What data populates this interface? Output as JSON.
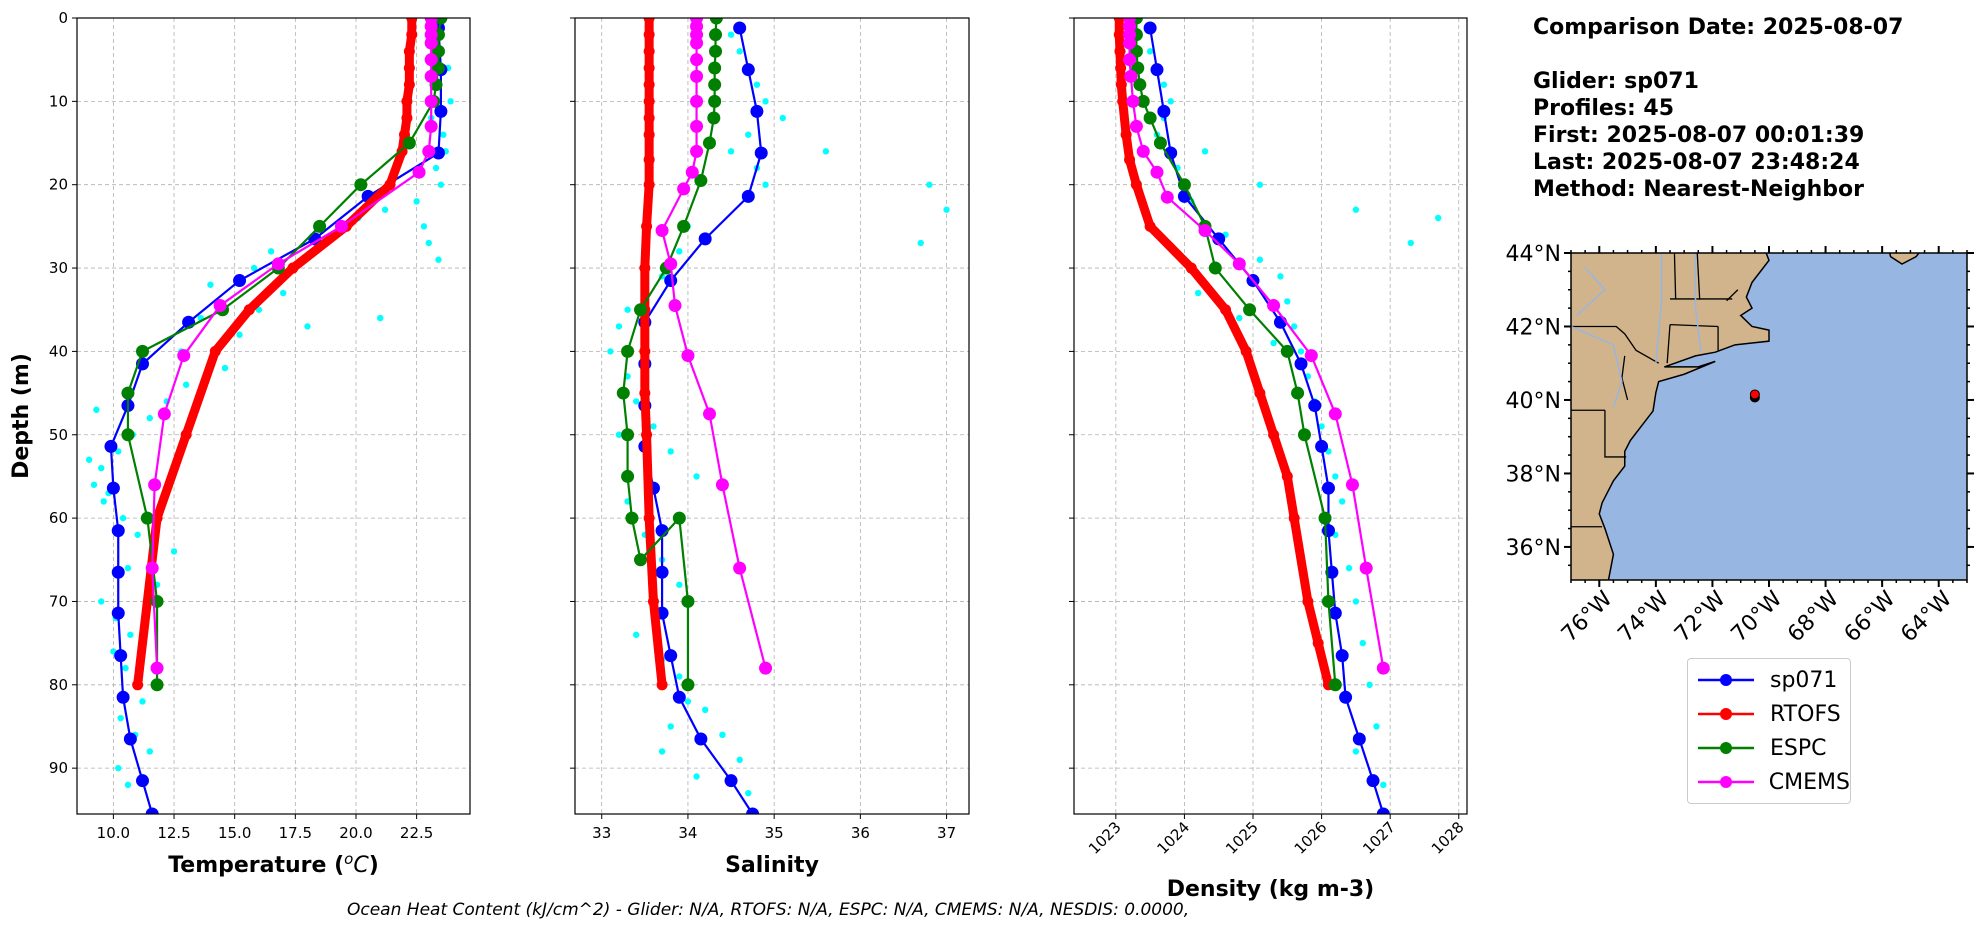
{
  "info": {
    "comparison_date": "Comparison Date: 2025-08-07",
    "glider": "Glider: sp071",
    "profiles": "Profiles: 45",
    "first": "First: 2025-08-07 00:01:39",
    "last": "Last: 2025-08-07 23:48:24",
    "method": "Method: Nearest-Neighbor"
  },
  "footer": "Ocean Heat Content (kJ/cm^2) - Glider: N/A,  RTOFS: N/A,  ESPC: N/A,  CMEMS: N/A,  NESDIS: 0.0000,",
  "legend": [
    {
      "label": "sp071",
      "color": "#0000ff"
    },
    {
      "label": "RTOFS",
      "color": "#ff0000"
    },
    {
      "label": "ESPC",
      "color": "#008000"
    },
    {
      "label": "CMEMS",
      "color": "#ff00ff"
    }
  ],
  "colors": {
    "glider_obs": "#00ffff",
    "land": "#d2b48c",
    "ocean": "#97b6e1"
  },
  "chart_data": [
    {
      "type": "line",
      "panel": "temperature",
      "xlabel": "Temperature (oC)",
      "ylabel": "Depth (m)",
      "xlim": [
        8.5,
        24.7
      ],
      "ylim": [
        95.5,
        0
      ],
      "xticks": [
        10.0,
        12.5,
        15.0,
        17.5,
        20.0,
        22.5
      ],
      "xtick_labels": [
        "10.0",
        "12.5",
        "15.0",
        "17.5",
        "20.0",
        "22.5"
      ],
      "yticks": [
        0,
        10,
        20,
        30,
        40,
        50,
        60,
        70,
        80,
        90
      ],
      "ytick_labels": [
        "0",
        "10",
        "20",
        "30",
        "40",
        "50",
        "60",
        "70",
        "80",
        "90"
      ],
      "grid": true,
      "scatter_glider": {
        "x": [
          23.2,
          23.5,
          23.8,
          23.4,
          23.9,
          23.1,
          23.6,
          23.7,
          23.3,
          23.5,
          22.5,
          21.2,
          22.8,
          23.0,
          23.4,
          20.1,
          19.2,
          16.5,
          15.8,
          17.0,
          14.0,
          13.6,
          15.2,
          12.8,
          14.6,
          16.0,
          18.0,
          21.0,
          13.0,
          12.2,
          11.5,
          10.8,
          10.2,
          9.5,
          9.2,
          9.6,
          10.4,
          11.0,
          12.5,
          9.3,
          9.0,
          9.8,
          10.6,
          11.8,
          9.5,
          10.1,
          10.7,
          10.0,
          10.5,
          11.2,
          10.3,
          10.9,
          11.5,
          10.2,
          10.6
        ],
        "y": [
          2,
          4,
          6,
          8,
          10,
          12,
          14,
          16,
          18,
          20,
          22,
          23,
          25,
          27,
          29,
          24,
          26,
          28,
          30,
          33,
          32,
          36,
          38,
          40,
          42,
          35,
          37,
          36,
          44,
          46,
          48,
          50,
          52,
          54,
          56,
          58,
          60,
          62,
          64,
          47,
          53,
          57,
          66,
          68,
          70,
          72,
          74,
          76,
          78,
          82,
          84,
          86,
          88,
          90,
          92
        ]
      },
      "series": [
        {
          "name": "sp071",
          "x": [
            23.4,
            23.5,
            23.5,
            23.4,
            20.5,
            18.3,
            15.2,
            13.1,
            11.2,
            10.6,
            9.9,
            10.0,
            10.2,
            10.2,
            10.2,
            10.3,
            10.4,
            10.7,
            11.2,
            11.6
          ],
          "y": [
            1.2,
            6.2,
            11.2,
            16.2,
            21.4,
            26.5,
            31.5,
            36.5,
            41.5,
            46.5,
            51.4,
            56.4,
            61.5,
            66.5,
            71.4,
            76.5,
            81.5,
            86.5,
            91.5,
            95.5
          ]
        },
        {
          "name": "RTOFS",
          "x": [
            22.3,
            22.3,
            22.2,
            22.2,
            22.2,
            22.1,
            22.1,
            22.0,
            21.9,
            21.4,
            19.6,
            17.4,
            15.6,
            14.2,
            13.0,
            11.8,
            11.0
          ],
          "y": [
            0,
            2,
            4,
            6,
            8,
            10,
            12,
            14,
            16,
            20,
            25,
            30,
            35,
            40,
            50,
            60,
            80
          ]
        },
        {
          "name": "ESPC",
          "x": [
            23.5,
            23.4,
            23.4,
            23.4,
            23.3,
            23.2,
            22.2,
            20.2,
            18.5,
            16.8,
            14.5,
            11.2,
            10.6,
            10.6,
            11.4,
            11.8,
            11.8
          ],
          "y": [
            0,
            2,
            4,
            6,
            8,
            10,
            15,
            20,
            25,
            30,
            35,
            40,
            45,
            50,
            60,
            70,
            80
          ]
        },
        {
          "name": "CMEMS",
          "x": [
            23.1,
            23.1,
            23.1,
            23.1,
            23.1,
            23.1,
            23.1,
            23.1,
            23.0,
            22.6,
            19.4,
            16.8,
            14.4,
            12.9,
            12.1,
            11.7,
            11.6,
            11.8
          ],
          "y": [
            0,
            1,
            2,
            3,
            5,
            7,
            10,
            13,
            16,
            18.5,
            25,
            29.5,
            34.5,
            40.5,
            47.5,
            56,
            66,
            78
          ]
        }
      ]
    },
    {
      "type": "line",
      "panel": "salinity",
      "xlabel": "Salinity",
      "ylabel": "",
      "xlim": [
        32.69,
        37.26
      ],
      "ylim": [
        95.5,
        0
      ],
      "xticks": [
        33,
        34,
        35,
        36,
        37
      ],
      "xtick_labels": [
        "33",
        "34",
        "35",
        "36",
        "37"
      ],
      "yticks": [
        0,
        10,
        20,
        30,
        40,
        50,
        60,
        70,
        80,
        90
      ],
      "grid": true,
      "scatter_glider": {
        "x": [
          34.5,
          34.6,
          34.7,
          34.8,
          34.9,
          35.1,
          34.7,
          34.5,
          34.8,
          34.9,
          35.6,
          36.8,
          37.0,
          36.7,
          34.0,
          33.9,
          33.7,
          33.5,
          33.3,
          33.2,
          33.1,
          33.3,
          33.4,
          33.6,
          33.8,
          34.1,
          33.3,
          33.5,
          33.7,
          33.9,
          33.6,
          33.4,
          33.7,
          33.9,
          34.0,
          33.8,
          33.7,
          34.2,
          34.4,
          34.6,
          34.1,
          34.7,
          33.5,
          33.2
        ],
        "y": [
          2,
          4,
          6,
          8,
          10,
          12,
          14,
          16,
          18,
          20,
          16,
          20,
          23,
          27,
          25,
          28,
          31,
          33,
          35,
          37,
          40,
          43,
          46,
          49,
          52,
          55,
          58,
          62,
          65,
          68,
          71,
          74,
          77,
          79,
          82,
          85,
          88,
          83,
          86,
          89,
          91,
          93,
          45,
          50
        ]
      },
      "series": [
        {
          "name": "sp071",
          "x": [
            34.6,
            34.7,
            34.8,
            34.85,
            34.7,
            34.2,
            33.8,
            33.5,
            33.5,
            33.5,
            33.5,
            33.6,
            33.7,
            33.7,
            33.7,
            33.8,
            33.9,
            34.15,
            34.5,
            34.75
          ],
          "y": [
            1.2,
            6.2,
            11.2,
            16.2,
            21.4,
            26.5,
            31.5,
            36.5,
            41.5,
            46.5,
            51.4,
            56.4,
            61.5,
            66.5,
            71.4,
            76.5,
            81.5,
            86.5,
            91.5,
            95.5
          ]
        },
        {
          "name": "RTOFS",
          "x": [
            33.55,
            33.55,
            33.55,
            33.55,
            33.55,
            33.55,
            33.55,
            33.55,
            33.55,
            33.55,
            33.52,
            33.5,
            33.5,
            33.5,
            33.5,
            33.52,
            33.55,
            33.6,
            33.7
          ],
          "y": [
            0,
            2,
            4,
            6,
            8,
            10,
            12,
            14,
            17,
            20,
            25,
            30,
            35,
            40,
            45,
            50,
            60,
            70,
            80
          ]
        },
        {
          "name": "ESPC",
          "x": [
            34.33,
            34.32,
            34.32,
            34.31,
            34.31,
            34.31,
            34.3,
            34.25,
            34.15,
            33.95,
            33.75,
            33.45,
            33.3,
            33.25,
            33.3,
            33.3,
            33.35,
            33.45,
            33.9,
            34.0,
            34.0
          ],
          "y": [
            0,
            2,
            4,
            6,
            8,
            10,
            12,
            15,
            19.5,
            25,
            30,
            35,
            40,
            45,
            50,
            55,
            60,
            65,
            60,
            70,
            80
          ]
        },
        {
          "name": "CMEMS",
          "x": [
            34.1,
            34.1,
            34.1,
            34.1,
            34.1,
            34.1,
            34.1,
            34.1,
            34.1,
            34.05,
            33.95,
            33.7,
            33.8,
            33.85,
            34.0,
            34.25,
            34.4,
            34.6,
            34.9
          ],
          "y": [
            0,
            1,
            2,
            3,
            5,
            7,
            10,
            13,
            16,
            18.5,
            20.5,
            25.5,
            29.5,
            34.5,
            40.5,
            47.5,
            56,
            66,
            78
          ]
        }
      ]
    },
    {
      "type": "line",
      "panel": "density",
      "xlabel": "Density (kg m-3)",
      "ylabel": "",
      "xlim": [
        1022.39,
        1028.12
      ],
      "ylim": [
        95.5,
        0
      ],
      "xticks": [
        1023,
        1024,
        1025,
        1026,
        1027,
        1028
      ],
      "xtick_labels": [
        "1023",
        "1024",
        "1025",
        "1026",
        "1027",
        "1028"
      ],
      "yticks": [
        0,
        10,
        20,
        30,
        40,
        50,
        60,
        70,
        80,
        90
      ],
      "grid": true,
      "scatter_glider": {
        "x": [
          1023.5,
          1023.6,
          1023.7,
          1023.8,
          1023.7,
          1023.6,
          1023.8,
          1023.9,
          1024.0,
          1024.1,
          1024.3,
          1025.1,
          1026.5,
          1027.3,
          1027.7,
          1024.6,
          1025.1,
          1025.4,
          1025.5,
          1025.6,
          1025.7,
          1025.8,
          1025.9,
          1026.0,
          1026.1,
          1026.2,
          1026.3,
          1026.2,
          1026.4,
          1026.5,
          1026.6,
          1026.7,
          1026.8,
          1026.5,
          1026.9,
          1023.3,
          1023.1,
          1024.2,
          1024.8,
          1025.3
        ],
        "y": [
          4,
          6,
          8,
          10,
          12,
          14,
          16,
          18,
          20,
          22,
          16,
          20,
          23,
          27,
          24,
          26,
          29,
          31,
          34,
          37,
          40,
          43,
          46,
          49,
          52,
          55,
          58,
          62,
          66,
          70,
          75,
          80,
          85,
          88,
          92,
          2,
          4,
          33,
          36,
          39
        ]
      },
      "series": [
        {
          "name": "sp071",
          "x": [
            1023.5,
            1023.6,
            1023.7,
            1023.8,
            1024.0,
            1024.5,
            1025.0,
            1025.4,
            1025.7,
            1025.9,
            1026.0,
            1026.1,
            1026.1,
            1026.15,
            1026.2,
            1026.3,
            1026.35,
            1026.55,
            1026.75,
            1026.9
          ],
          "y": [
            1.2,
            6.2,
            11.2,
            16.2,
            21.4,
            26.5,
            31.5,
            36.5,
            41.5,
            46.5,
            51.4,
            56.4,
            61.5,
            66.5,
            71.4,
            76.5,
            81.5,
            86.5,
            91.5,
            95.5
          ]
        },
        {
          "name": "RTOFS",
          "x": [
            1023.05,
            1023.05,
            1023.06,
            1023.07,
            1023.08,
            1023.1,
            1023.15,
            1023.2,
            1023.3,
            1023.5,
            1024.1,
            1024.6,
            1024.9,
            1025.1,
            1025.3,
            1025.5,
            1025.6,
            1025.8,
            1025.95,
            1026.1
          ],
          "y": [
            0,
            2,
            4,
            6,
            8,
            10,
            14,
            17,
            20,
            25,
            30,
            35,
            40,
            45,
            50,
            55,
            60,
            70,
            75,
            80
          ]
        },
        {
          "name": "ESPC",
          "x": [
            1023.3,
            1023.3,
            1023.3,
            1023.32,
            1023.35,
            1023.4,
            1023.5,
            1023.65,
            1024.0,
            1024.3,
            1024.45,
            1024.95,
            1025.5,
            1025.65,
            1025.75,
            1026.05,
            1026.1,
            1026.2
          ],
          "y": [
            0,
            2,
            4,
            6,
            8,
            10,
            12,
            15,
            20,
            25,
            30,
            35,
            40,
            45,
            50,
            60,
            70,
            80
          ]
        },
        {
          "name": "CMEMS",
          "x": [
            1023.2,
            1023.2,
            1023.2,
            1023.2,
            1023.2,
            1023.22,
            1023.25,
            1023.3,
            1023.4,
            1023.6,
            1023.75,
            1024.3,
            1024.8,
            1025.3,
            1025.85,
            1026.2,
            1026.45,
            1026.65,
            1026.9
          ],
          "y": [
            0,
            1,
            2,
            3,
            5,
            7,
            10,
            13,
            16,
            18.5,
            21.5,
            25.5,
            29.5,
            34.5,
            40.5,
            47.5,
            56,
            66,
            78
          ]
        }
      ]
    }
  ],
  "map": {
    "lon_range": [
      -77.0,
      -63.0
    ],
    "lat_range": [
      35.1,
      44.0
    ],
    "lat_ticks": [
      "36°N",
      "38°N",
      "40°N",
      "42°N",
      "44°N"
    ],
    "lat_tick_values": [
      36,
      38,
      40,
      42,
      44
    ],
    "lon_ticks": [
      "76°W",
      "74°W",
      "72°W",
      "70°W",
      "68°W",
      "66°W",
      "64°W"
    ],
    "lon_tick_values": [
      -76,
      -74,
      -72,
      -70,
      -68,
      -66,
      -64
    ],
    "glider_position": {
      "lon": -70.5,
      "lat": 40.15
    }
  }
}
